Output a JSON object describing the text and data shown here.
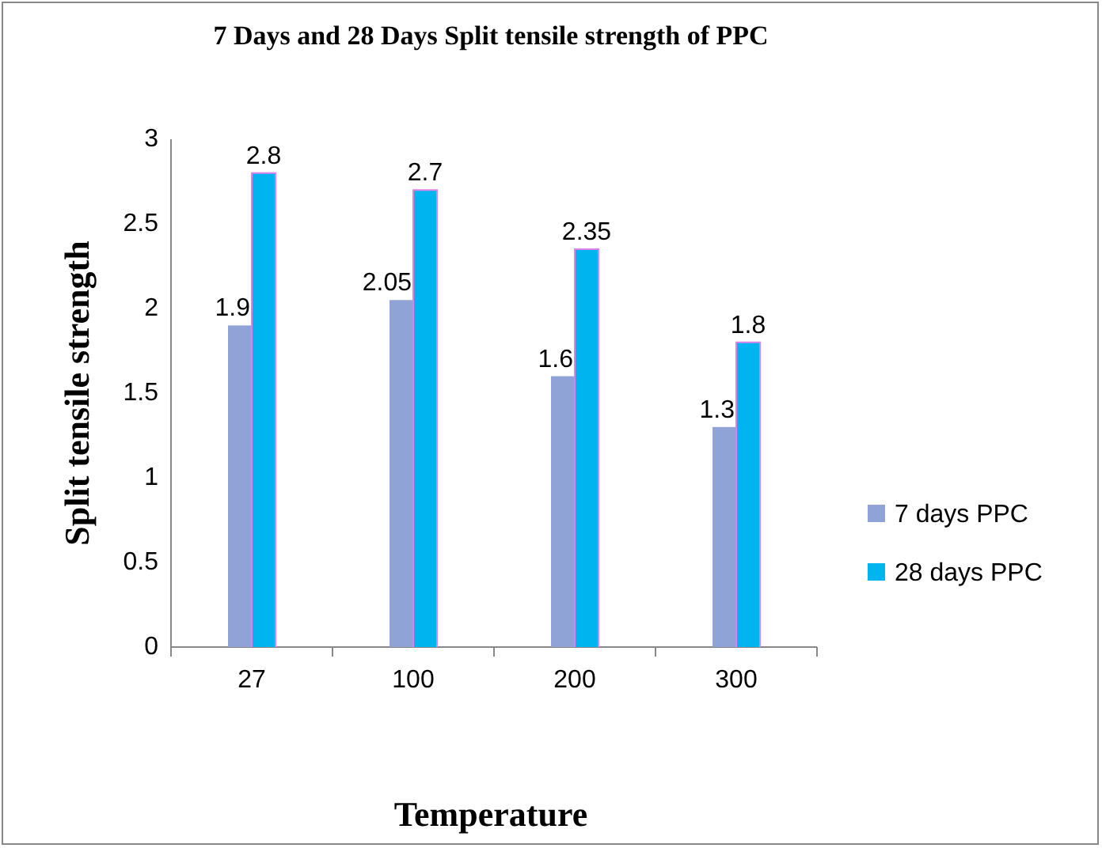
{
  "chart_data": {
    "type": "bar",
    "title": "7 Days and 28 Days Split tensile strength of PPC",
    "xlabel": "Temperature",
    "ylabel": "Split tensile strength",
    "categories": [
      "27",
      "100",
      "200",
      "300"
    ],
    "series": [
      {
        "name": "7 days PPC",
        "color": "#8fa3d6",
        "values": [
          1.9,
          2.05,
          1.6,
          1.3
        ]
      },
      {
        "name": "28 days PPC",
        "color": "#00b4f0",
        "values": [
          2.8,
          2.7,
          2.35,
          1.8
        ]
      }
    ],
    "ylim": [
      0,
      3
    ],
    "yticks": [
      0,
      0.5,
      1,
      1.5,
      2,
      2.5,
      3
    ],
    "data_labels": true,
    "legend": "right",
    "grid": false
  }
}
